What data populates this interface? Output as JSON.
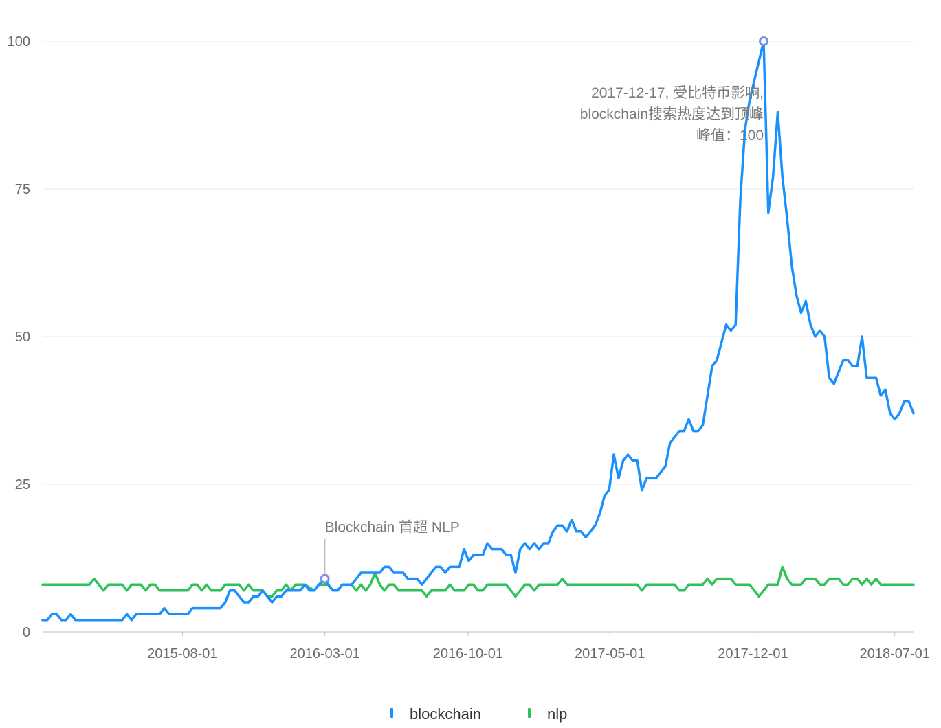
{
  "chart_data": {
    "type": "line",
    "title": "",
    "xlabel": "",
    "ylabel": "",
    "x_start": "2015-01-04",
    "x_end": "2018-07-29",
    "x_ticks": [
      "2015-08-01",
      "2016-03-01",
      "2016-10-01",
      "2017-05-01",
      "2017-12-01",
      "2018-07-01"
    ],
    "ylim": [
      0,
      100
    ],
    "y_ticks": [
      0,
      25,
      50,
      75,
      100
    ],
    "grid": "horizontal",
    "legend_position": "bottom",
    "series": [
      {
        "name": "blockchain",
        "color": "#1890ff",
        "points": [
          [
            "2015-01-04",
            2
          ],
          [
            "2015-01-11",
            2
          ],
          [
            "2015-01-18",
            3
          ],
          [
            "2015-01-25",
            3
          ],
          [
            "2015-02-01",
            2
          ],
          [
            "2015-02-08",
            2
          ],
          [
            "2015-02-15",
            3
          ],
          [
            "2015-02-22",
            2
          ],
          [
            "2015-03-15",
            2
          ],
          [
            "2015-04-19",
            2
          ],
          [
            "2015-05-03",
            2
          ],
          [
            "2015-05-10",
            3
          ],
          [
            "2015-05-17",
            2
          ],
          [
            "2015-05-24",
            3
          ],
          [
            "2015-06-28",
            3
          ],
          [
            "2015-07-05",
            4
          ],
          [
            "2015-07-12",
            3
          ],
          [
            "2015-08-09",
            3
          ],
          [
            "2015-08-16",
            4
          ],
          [
            "2015-09-27",
            4
          ],
          [
            "2015-10-04",
            5
          ],
          [
            "2015-10-11",
            7
          ],
          [
            "2015-10-18",
            7
          ],
          [
            "2015-11-01",
            5
          ],
          [
            "2015-11-08",
            5
          ],
          [
            "2015-11-15",
            6
          ],
          [
            "2015-11-22",
            6
          ],
          [
            "2015-11-29",
            7
          ],
          [
            "2015-12-06",
            6
          ],
          [
            "2015-12-13",
            5
          ],
          [
            "2015-12-20",
            6
          ],
          [
            "2015-12-27",
            6
          ],
          [
            "2016-01-03",
            7
          ],
          [
            "2016-01-10",
            7
          ],
          [
            "2016-01-24",
            7
          ],
          [
            "2016-01-31",
            8
          ],
          [
            "2016-02-07",
            7
          ],
          [
            "2016-02-14",
            7
          ],
          [
            "2016-02-21",
            8
          ],
          [
            "2016-03-01",
            9
          ],
          [
            "2016-03-06",
            8
          ],
          [
            "2016-03-13",
            7
          ],
          [
            "2016-03-20",
            7
          ],
          [
            "2016-03-27",
            8
          ],
          [
            "2016-04-03",
            8
          ],
          [
            "2016-04-10",
            8
          ],
          [
            "2016-04-17",
            9
          ],
          [
            "2016-04-24",
            10
          ],
          [
            "2016-05-22",
            10
          ],
          [
            "2016-05-29",
            11
          ],
          [
            "2016-06-05",
            11
          ],
          [
            "2016-06-12",
            10
          ],
          [
            "2016-06-26",
            10
          ],
          [
            "2016-07-03",
            9
          ],
          [
            "2016-07-17",
            9
          ],
          [
            "2016-07-24",
            8
          ],
          [
            "2016-08-14",
            11
          ],
          [
            "2016-08-21",
            11
          ],
          [
            "2016-08-28",
            10
          ],
          [
            "2016-09-04",
            11
          ],
          [
            "2016-09-18",
            11
          ],
          [
            "2016-09-25",
            14
          ],
          [
            "2016-10-02",
            12
          ],
          [
            "2016-10-09",
            13
          ],
          [
            "2016-10-23",
            13
          ],
          [
            "2016-10-30",
            15
          ],
          [
            "2016-11-06",
            14
          ],
          [
            "2016-11-20",
            14
          ],
          [
            "2016-11-27",
            13
          ],
          [
            "2016-12-04",
            13
          ],
          [
            "2016-12-11",
            10
          ],
          [
            "2016-12-18",
            14
          ],
          [
            "2016-12-25",
            15
          ],
          [
            "2017-01-01",
            14
          ],
          [
            "2017-01-08",
            15
          ],
          [
            "2017-01-15",
            14
          ],
          [
            "2017-01-22",
            15
          ],
          [
            "2017-01-29",
            15
          ],
          [
            "2017-02-05",
            17
          ],
          [
            "2017-02-12",
            18
          ],
          [
            "2017-02-19",
            18
          ],
          [
            "2017-02-26",
            17
          ],
          [
            "2017-03-05",
            19
          ],
          [
            "2017-03-12",
            17
          ],
          [
            "2017-03-19",
            17
          ],
          [
            "2017-03-26",
            16
          ],
          [
            "2017-04-02",
            17
          ],
          [
            "2017-04-09",
            18
          ],
          [
            "2017-04-16",
            20
          ],
          [
            "2017-04-23",
            23
          ],
          [
            "2017-04-30",
            24
          ],
          [
            "2017-05-07",
            30
          ],
          [
            "2017-05-14",
            26
          ],
          [
            "2017-05-21",
            29
          ],
          [
            "2017-05-28",
            30
          ],
          [
            "2017-06-04",
            29
          ],
          [
            "2017-06-11",
            29
          ],
          [
            "2017-06-18",
            24
          ],
          [
            "2017-06-25",
            26
          ],
          [
            "2017-07-09",
            26
          ],
          [
            "2017-07-23",
            28
          ],
          [
            "2017-07-30",
            32
          ],
          [
            "2017-08-06",
            33
          ],
          [
            "2017-08-13",
            34
          ],
          [
            "2017-08-20",
            34
          ],
          [
            "2017-08-27",
            36
          ],
          [
            "2017-09-03",
            34
          ],
          [
            "2017-09-10",
            34
          ],
          [
            "2017-09-17",
            35
          ],
          [
            "2017-09-24",
            40
          ],
          [
            "2017-10-01",
            45
          ],
          [
            "2017-10-08",
            46
          ],
          [
            "2017-10-15",
            49
          ],
          [
            "2017-10-22",
            52
          ],
          [
            "2017-10-29",
            51
          ],
          [
            "2017-11-05",
            52
          ],
          [
            "2017-11-12",
            73
          ],
          [
            "2017-11-19",
            85
          ],
          [
            "2017-11-26",
            90
          ],
          [
            "2017-12-17",
            100
          ],
          [
            "2017-12-24",
            71
          ],
          [
            "2017-12-31",
            77
          ],
          [
            "2018-01-07",
            88
          ],
          [
            "2018-01-14",
            77
          ],
          [
            "2018-01-21",
            70
          ],
          [
            "2018-01-28",
            62
          ],
          [
            "2018-02-04",
            57
          ],
          [
            "2018-02-11",
            54
          ],
          [
            "2018-02-18",
            56
          ],
          [
            "2018-02-25",
            52
          ],
          [
            "2018-03-04",
            50
          ],
          [
            "2018-03-11",
            51
          ],
          [
            "2018-03-18",
            50
          ],
          [
            "2018-03-25",
            43
          ],
          [
            "2018-04-01",
            42
          ],
          [
            "2018-04-15",
            46
          ],
          [
            "2018-04-22",
            46
          ],
          [
            "2018-04-29",
            45
          ],
          [
            "2018-05-06",
            45
          ],
          [
            "2018-05-13",
            50
          ],
          [
            "2018-05-20",
            43
          ],
          [
            "2018-06-03",
            43
          ],
          [
            "2018-06-10",
            40
          ],
          [
            "2018-06-17",
            41
          ],
          [
            "2018-06-24",
            37
          ],
          [
            "2018-07-01",
            36
          ],
          [
            "2018-07-08",
            37
          ],
          [
            "2018-07-15",
            39
          ],
          [
            "2018-07-22",
            39
          ],
          [
            "2018-07-29",
            37
          ],
          [
            "2018-08-12",
            37
          ]
        ]
      },
      {
        "name": "nlp",
        "color": "#2fc25b",
        "points": [
          [
            "2015-01-04",
            8
          ],
          [
            "2015-03-15",
            8
          ],
          [
            "2015-03-22",
            9
          ],
          [
            "2015-04-05",
            7
          ],
          [
            "2015-04-12",
            8
          ],
          [
            "2015-05-03",
            8
          ],
          [
            "2015-05-10",
            7
          ],
          [
            "2015-05-17",
            8
          ],
          [
            "2015-05-31",
            8
          ],
          [
            "2015-06-07",
            7
          ],
          [
            "2015-06-14",
            8
          ],
          [
            "2015-06-21",
            8
          ],
          [
            "2015-06-28",
            7
          ],
          [
            "2015-08-09",
            7
          ],
          [
            "2015-08-16",
            8
          ],
          [
            "2015-08-23",
            8
          ],
          [
            "2015-08-30",
            7
          ],
          [
            "2015-09-06",
            8
          ],
          [
            "2015-09-13",
            7
          ],
          [
            "2015-09-27",
            7
          ],
          [
            "2015-10-04",
            8
          ],
          [
            "2015-10-25",
            8
          ],
          [
            "2015-11-01",
            7
          ],
          [
            "2015-11-08",
            8
          ],
          [
            "2015-11-15",
            7
          ],
          [
            "2015-11-29",
            7
          ],
          [
            "2015-12-06",
            6
          ],
          [
            "2015-12-13",
            6
          ],
          [
            "2015-12-20",
            7
          ],
          [
            "2015-12-27",
            7
          ],
          [
            "2016-01-03",
            8
          ],
          [
            "2016-01-10",
            7
          ],
          [
            "2016-01-17",
            8
          ],
          [
            "2016-01-24",
            8
          ],
          [
            "2016-01-31",
            8
          ],
          [
            "2016-02-14",
            7
          ],
          [
            "2016-02-21",
            8
          ],
          [
            "2016-03-06",
            8
          ],
          [
            "2016-03-13",
            7
          ],
          [
            "2016-03-20",
            7
          ],
          [
            "2016-03-27",
            8
          ],
          [
            "2016-04-10",
            8
          ],
          [
            "2016-04-17",
            7
          ],
          [
            "2016-04-24",
            8
          ],
          [
            "2016-05-01",
            7
          ],
          [
            "2016-05-08",
            8
          ],
          [
            "2016-05-15",
            10
          ],
          [
            "2016-05-22",
            8
          ],
          [
            "2016-05-29",
            7
          ],
          [
            "2016-06-05",
            8
          ],
          [
            "2016-06-12",
            8
          ],
          [
            "2016-06-19",
            7
          ],
          [
            "2016-07-24",
            7
          ],
          [
            "2016-07-31",
            6
          ],
          [
            "2016-08-07",
            7
          ],
          [
            "2016-08-28",
            7
          ],
          [
            "2016-09-04",
            8
          ],
          [
            "2016-09-11",
            7
          ],
          [
            "2016-09-25",
            7
          ],
          [
            "2016-10-02",
            8
          ],
          [
            "2016-10-09",
            8
          ],
          [
            "2016-10-16",
            7
          ],
          [
            "2016-10-23",
            7
          ],
          [
            "2016-10-30",
            8
          ],
          [
            "2016-11-27",
            8
          ],
          [
            "2016-12-04",
            7
          ],
          [
            "2016-12-11",
            6
          ],
          [
            "2016-12-18",
            7
          ],
          [
            "2016-12-25",
            8
          ],
          [
            "2017-01-01",
            8
          ],
          [
            "2017-01-08",
            7
          ],
          [
            "2017-01-15",
            8
          ],
          [
            "2017-02-12",
            8
          ],
          [
            "2017-02-19",
            9
          ],
          [
            "2017-02-26",
            8
          ],
          [
            "2017-06-11",
            8
          ],
          [
            "2017-06-18",
            7
          ],
          [
            "2017-06-25",
            8
          ],
          [
            "2017-08-06",
            8
          ],
          [
            "2017-08-13",
            7
          ],
          [
            "2017-08-20",
            7
          ],
          [
            "2017-08-27",
            8
          ],
          [
            "2017-09-17",
            8
          ],
          [
            "2017-09-24",
            9
          ],
          [
            "2017-10-01",
            8
          ],
          [
            "2017-10-08",
            9
          ],
          [
            "2017-10-29",
            9
          ],
          [
            "2017-11-05",
            8
          ],
          [
            "2017-11-26",
            8
          ],
          [
            "2017-12-03",
            7
          ],
          [
            "2017-12-10",
            6
          ],
          [
            "2017-12-17",
            7
          ],
          [
            "2017-12-24",
            8
          ],
          [
            "2018-01-07",
            8
          ],
          [
            "2018-01-14",
            11
          ],
          [
            "2018-01-21",
            9
          ],
          [
            "2018-01-28",
            8
          ],
          [
            "2018-02-11",
            8
          ],
          [
            "2018-02-18",
            9
          ],
          [
            "2018-03-04",
            9
          ],
          [
            "2018-03-11",
            8
          ],
          [
            "2018-03-18",
            8
          ],
          [
            "2018-03-25",
            9
          ],
          [
            "2018-04-08",
            9
          ],
          [
            "2018-04-15",
            8
          ],
          [
            "2018-04-22",
            8
          ],
          [
            "2018-04-29",
            9
          ],
          [
            "2018-05-06",
            9
          ],
          [
            "2018-05-13",
            8
          ],
          [
            "2018-05-20",
            9
          ],
          [
            "2018-05-27",
            8
          ],
          [
            "2018-06-03",
            9
          ],
          [
            "2018-06-10",
            8
          ],
          [
            "2018-08-12",
            8
          ]
        ]
      }
    ],
    "annotations": [
      {
        "date": "2016-03-01",
        "value": 9,
        "series": "blockchain",
        "lines": [
          "Blockchain 首超 NLP"
        ],
        "marker_color": "#7b8ee6"
      },
      {
        "date": "2017-12-17",
        "value": 100,
        "series": "blockchain",
        "lines": [
          "2017-12-17, 受比特币影响,",
          "blockchain搜索热度达到顶峰",
          "峰值：100"
        ],
        "marker_color": "#7b8ee6"
      }
    ]
  }
}
